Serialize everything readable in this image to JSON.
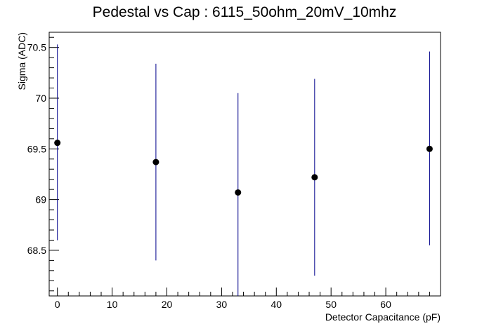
{
  "chart_data": {
    "type": "scatter",
    "title": "Pedestal vs Cap : 6115_50ohm_20mV_10mhz",
    "xlabel": "Detector Capacitance (pF)",
    "ylabel": "Sigma (ADC)",
    "xlim": [
      -1.5,
      70
    ],
    "ylim": [
      68.05,
      70.65
    ],
    "xticks": [
      0,
      10,
      20,
      30,
      40,
      50,
      60
    ],
    "yticks": [
      68.5,
      69,
      69.5,
      70,
      70.5
    ],
    "xtick_labels": [
      "0",
      "10",
      "20",
      "30",
      "40",
      "50",
      "60"
    ],
    "ytick_labels": [
      "68.5",
      "69",
      "69.5",
      "70",
      "70.5"
    ],
    "grid": false,
    "marker_color": "#000000",
    "errorbar_color": "#00008b",
    "points": [
      {
        "x": 0,
        "y": 69.56,
        "ylow": 68.6,
        "yhigh": 70.53
      },
      {
        "x": 18,
        "y": 69.37,
        "ylow": 68.4,
        "yhigh": 70.34
      },
      {
        "x": 33,
        "y": 69.07,
        "ylow": 68.05,
        "yhigh": 70.05
      },
      {
        "x": 47,
        "y": 69.22,
        "ylow": 68.25,
        "yhigh": 70.19
      },
      {
        "x": 68,
        "y": 69.5,
        "ylow": 68.55,
        "yhigh": 70.46
      }
    ]
  }
}
